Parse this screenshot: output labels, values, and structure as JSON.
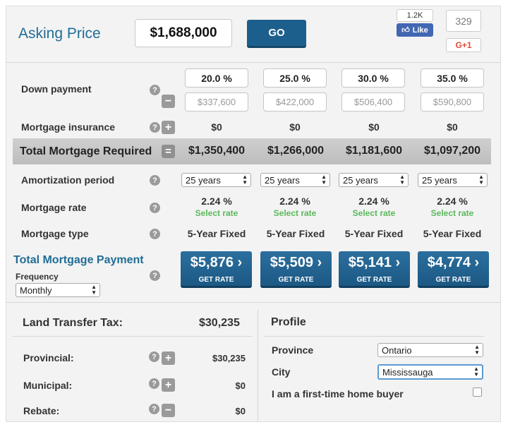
{
  "header": {
    "asking_price_label": "Asking Price",
    "asking_price_value": "$1,688,000",
    "go_label": "GO",
    "fb_count": "1.2K",
    "fb_like_label": "Like",
    "gplus_count": "329",
    "gplus_label": "G+1"
  },
  "rows": {
    "down_payment_label": "Down payment",
    "mortgage_insurance_label": "Mortgage insurance",
    "total_required_label": "Total Mortgage Required",
    "amortization_label": "Amortization period",
    "rate_label": "Mortgage rate",
    "type_label": "Mortgage type",
    "help_glyph": "?"
  },
  "columns": [
    {
      "down_pct": "20.0 %",
      "down_amt": "$337,600",
      "insurance": "$0",
      "total": "$1,350,400",
      "amortization": "25 years",
      "rate": "2.24 %",
      "select_rate": "Select rate",
      "type": "5-Year Fixed",
      "payment": "$5,876",
      "get_rate": "GET RATE"
    },
    {
      "down_pct": "25.0 %",
      "down_amt": "$422,000",
      "insurance": "$0",
      "total": "$1,266,000",
      "amortization": "25 years",
      "rate": "2.24 %",
      "select_rate": "Select rate",
      "type": "5-Year Fixed",
      "payment": "$5,509",
      "get_rate": "GET RATE"
    },
    {
      "down_pct": "30.0 %",
      "down_amt": "$506,400",
      "insurance": "$0",
      "total": "$1,181,600",
      "amortization": "25 years",
      "rate": "2.24 %",
      "select_rate": "Select rate",
      "type": "5-Year Fixed",
      "payment": "$5,141",
      "get_rate": "GET RATE"
    },
    {
      "down_pct": "35.0 %",
      "down_amt": "$590,800",
      "insurance": "$0",
      "total": "$1,097,200",
      "amortization": "25 years",
      "rate": "2.24 %",
      "select_rate": "Select rate",
      "type": "5-Year Fixed",
      "payment": "$4,774",
      "get_rate": "GET RATE"
    }
  ],
  "payment": {
    "title": "Total Mortgage Payment",
    "frequency_label": "Frequency",
    "frequency_value": "Monthly"
  },
  "land_transfer": {
    "title": "Land Transfer Tax:",
    "total": "$30,235",
    "provincial_label": "Provincial:",
    "provincial_value": "$30,235",
    "municipal_label": "Municipal:",
    "municipal_value": "$0",
    "rebate_label": "Rebate:",
    "rebate_value": "$0"
  },
  "profile": {
    "title": "Profile",
    "province_label": "Province",
    "province_value": "Ontario",
    "city_label": "City",
    "city_value": "Mississauga",
    "first_time_label": "I am a first-time home buyer"
  },
  "colors": {
    "accent_blue": "#1f6d96",
    "button_blue": "#1d5f8c",
    "select_rate_green": "#5cb85c"
  }
}
